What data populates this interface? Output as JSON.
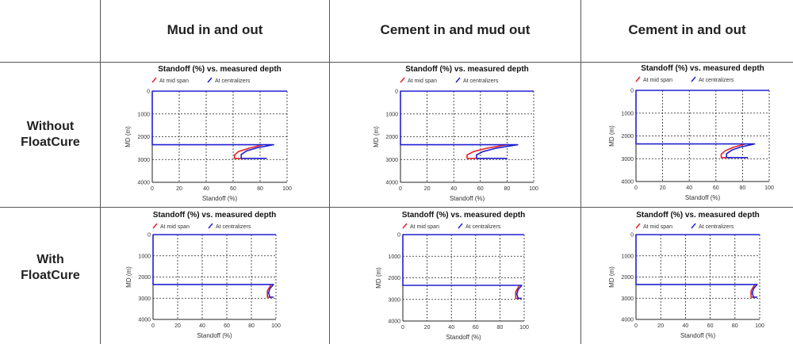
{
  "table": {
    "columns": [
      "Mud in and out",
      "Cement in and mud out",
      "Cement in and out"
    ],
    "rows": [
      [
        "Without",
        "FloatCure"
      ],
      [
        "With",
        "FloatCure"
      ]
    ]
  },
  "colors": {
    "mid_span": "#e8202a",
    "centralizers": "#2020d0"
  },
  "chart_data": [
    {
      "type": "line",
      "row": "Without FloatCure",
      "column": "Mud in and out",
      "title": "Standoff (%) vs. measured depth",
      "legend": [
        "At mid span",
        "At centralizers"
      ],
      "xlabel": "Standoff (%)",
      "ylabel": "MD (m)",
      "xlim": [
        0,
        100
      ],
      "ylim": [
        0,
        4000
      ],
      "xticks": [
        "0",
        "20",
        "40",
        "60",
        "80",
        "100"
      ],
      "yticks": [
        "0",
        "1000",
        "2000",
        "3000",
        "4000"
      ],
      "grid": true,
      "series": [
        {
          "name": "At mid span",
          "points": [
            [
              82,
              2350
            ],
            [
              72,
              2500
            ],
            [
              64,
              2650
            ],
            [
              61,
              2800
            ],
            [
              61,
              2950
            ],
            [
              70,
              2950
            ]
          ]
        },
        {
          "name": "At centralizers",
          "points": [
            [
              100,
              0
            ],
            [
              0,
              0
            ],
            [
              0,
              2350
            ],
            [
              90,
              2350
            ],
            [
              78,
              2480
            ],
            [
              70,
              2620
            ],
            [
              66,
              2780
            ],
            [
              66,
              2950
            ],
            [
              85,
              2950
            ]
          ]
        }
      ]
    },
    {
      "type": "line",
      "row": "Without FloatCure",
      "column": "Cement in and mud out",
      "title": "Standoff (%) vs. measured depth",
      "legend": [
        "At mid span",
        "At centralizers"
      ],
      "xlabel": "Standoff (%)",
      "ylabel": "MD (m)",
      "xlim": [
        0,
        100
      ],
      "ylim": [
        0,
        4000
      ],
      "xticks": [
        "0",
        "20",
        "40",
        "60",
        "80",
        "100"
      ],
      "yticks": [
        "0",
        "1000",
        "2000",
        "3000",
        "4000"
      ],
      "grid": true,
      "series": [
        {
          "name": "At mid span",
          "points": [
            [
              80,
              2350
            ],
            [
              65,
              2500
            ],
            [
              55,
              2650
            ],
            [
              50,
              2800
            ],
            [
              50,
              2950
            ],
            [
              62,
              2950
            ]
          ]
        },
        {
          "name": "At centralizers",
          "points": [
            [
              100,
              0
            ],
            [
              0,
              0
            ],
            [
              0,
              2350
            ],
            [
              88,
              2350
            ],
            [
              72,
              2500
            ],
            [
              62,
              2650
            ],
            [
              57,
              2800
            ],
            [
              57,
              2950
            ],
            [
              80,
              2950
            ]
          ]
        }
      ]
    },
    {
      "type": "line",
      "row": "Without FloatCure",
      "column": "Cement in and out",
      "title": "Standoff (%) vs. measured depth",
      "legend": [
        "At mid span",
        "At centralizers"
      ],
      "xlabel": "Standoff (%)",
      "ylabel": "MD (m)",
      "xlim": [
        0,
        100
      ],
      "ylim": [
        0,
        4000
      ],
      "xticks": [
        "0",
        "20",
        "40",
        "60",
        "80",
        "100"
      ],
      "yticks": [
        "0",
        "1000",
        "2000",
        "3000",
        "4000"
      ],
      "grid": true,
      "series": [
        {
          "name": "At mid span",
          "points": [
            [
              82,
              2350
            ],
            [
              73,
              2500
            ],
            [
              67,
              2650
            ],
            [
              64,
              2800
            ],
            [
              64,
              2950
            ],
            [
              72,
              2950
            ]
          ]
        },
        {
          "name": "At centralizers",
          "points": [
            [
              100,
              0
            ],
            [
              0,
              0
            ],
            [
              0,
              2350
            ],
            [
              89,
              2350
            ],
            [
              79,
              2480
            ],
            [
              72,
              2620
            ],
            [
              68,
              2780
            ],
            [
              68,
              2950
            ],
            [
              84,
              2950
            ]
          ]
        }
      ]
    },
    {
      "type": "line",
      "row": "With FloatCure",
      "column": "Mud in and out",
      "title": "Standoff (%) vs. measured depth",
      "legend": [
        "At mid span",
        "At centralizers"
      ],
      "xlabel": "Standoff (%)",
      "ylabel": "MD (m)",
      "xlim": [
        0,
        100
      ],
      "ylim": [
        0,
        4000
      ],
      "xticks": [
        "0",
        "20",
        "40",
        "60",
        "80",
        "100"
      ],
      "yticks": [
        "0",
        "1000",
        "2000",
        "3000",
        "4000"
      ],
      "grid": true,
      "series": [
        {
          "name": "At mid span",
          "points": [
            [
              96,
              2350
            ],
            [
              93,
              2650
            ],
            [
              93,
              2950
            ],
            [
              96,
              2950
            ]
          ]
        },
        {
          "name": "At centralizers",
          "points": [
            [
              100,
              0
            ],
            [
              0,
              0
            ],
            [
              0,
              2350
            ],
            [
              98,
              2350
            ],
            [
              95,
              2550
            ],
            [
              94,
              2750
            ],
            [
              95,
              2950
            ],
            [
              98,
              2950
            ]
          ]
        }
      ]
    },
    {
      "type": "line",
      "row": "With FloatCure",
      "column": "Cement in and mud out",
      "title": "Standoff (%) vs. measured depth",
      "legend": [
        "At mid span",
        "At centralizers"
      ],
      "xlabel": "Standoff (%)",
      "ylabel": "MD (m)",
      "xlim": [
        0,
        100
      ],
      "ylim": [
        0,
        4000
      ],
      "xticks": [
        "0",
        "20",
        "40",
        "60",
        "80",
        "100"
      ],
      "yticks": [
        "0",
        "1000",
        "2000",
        "3000",
        "4000"
      ],
      "grid": true,
      "series": [
        {
          "name": "At mid span",
          "points": [
            [
              96,
              2350
            ],
            [
              93,
              2650
            ],
            [
              93,
              2950
            ],
            [
              96,
              2950
            ]
          ]
        },
        {
          "name": "At centralizers",
          "points": [
            [
              100,
              0
            ],
            [
              0,
              0
            ],
            [
              0,
              2350
            ],
            [
              98,
              2350
            ],
            [
              95,
              2550
            ],
            [
              94,
              2750
            ],
            [
              95,
              2950
            ],
            [
              98,
              2950
            ]
          ]
        }
      ]
    },
    {
      "type": "line",
      "row": "With FloatCure",
      "column": "Cement in and out",
      "title": "Standoff (%) vs. measured depth",
      "legend": [
        "At mid span",
        "At centralizers"
      ],
      "xlabel": "Standoff (%)",
      "ylabel": "MD (m)",
      "xlim": [
        0,
        100
      ],
      "ylim": [
        0,
        4000
      ],
      "xticks": [
        "0",
        "20",
        "40",
        "60",
        "80",
        "100"
      ],
      "yticks": [
        "0",
        "1000",
        "2000",
        "3000",
        "4000"
      ],
      "grid": true,
      "series": [
        {
          "name": "At mid span",
          "points": [
            [
              96,
              2350
            ],
            [
              93,
              2650
            ],
            [
              93,
              2950
            ],
            [
              96,
              2950
            ]
          ]
        },
        {
          "name": "At centralizers",
          "points": [
            [
              100,
              0
            ],
            [
              0,
              0
            ],
            [
              0,
              2350
            ],
            [
              98,
              2350
            ],
            [
              95,
              2550
            ],
            [
              94,
              2750
            ],
            [
              95,
              2950
            ],
            [
              98,
              2950
            ]
          ]
        }
      ]
    }
  ]
}
